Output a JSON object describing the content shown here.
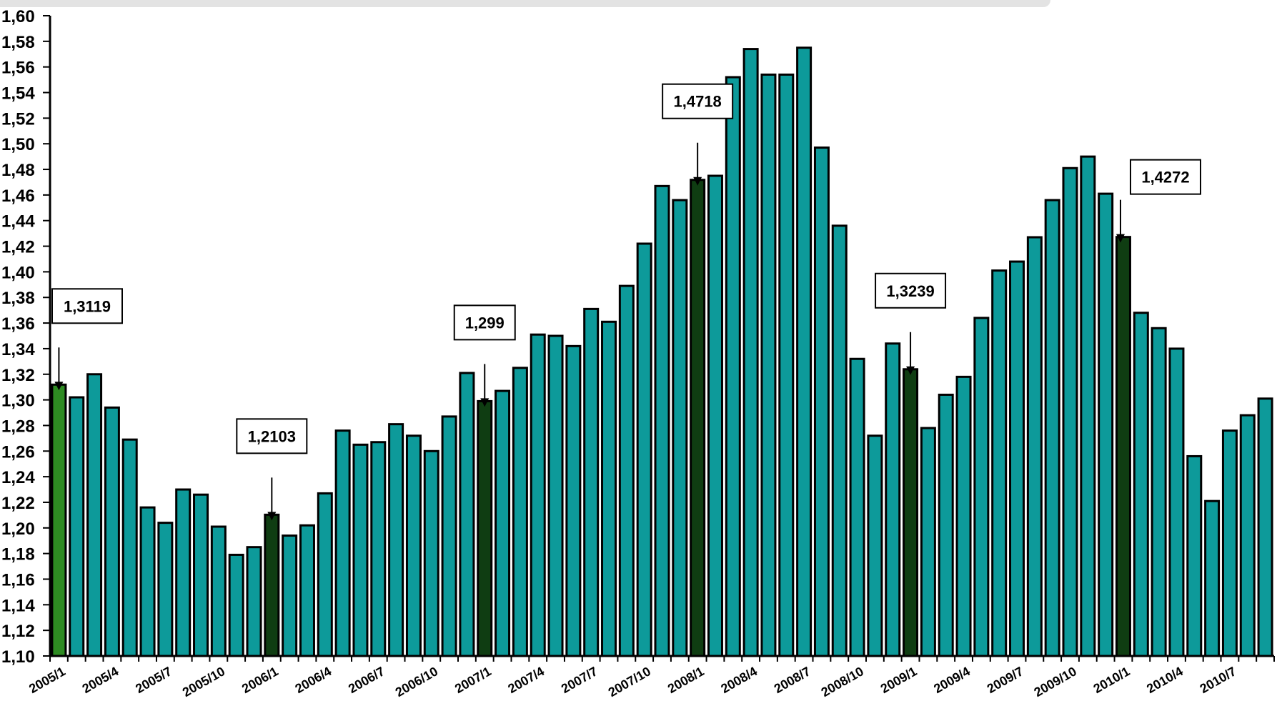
{
  "chart_data": {
    "type": "bar",
    "title": "",
    "xlabel": "",
    "ylabel": "",
    "ylim": [
      1.1,
      1.6
    ],
    "y_step": 0.02,
    "grid": false,
    "legend": "none",
    "colors": {
      "bar": "#0d9a9a",
      "highlight_bar": "#0f3d12",
      "first_bar": "#2e8b22",
      "outline": "#000000"
    },
    "categories": [
      "2005/1",
      "2005/2",
      "2005/3",
      "2005/4",
      "2005/5",
      "2005/6",
      "2005/7",
      "2005/8",
      "2005/9",
      "2005/10",
      "2005/11",
      "2005/12",
      "2006/1",
      "2006/2",
      "2006/3",
      "2006/4",
      "2006/5",
      "2006/6",
      "2006/7",
      "2006/8",
      "2006/9",
      "2006/10",
      "2006/11",
      "2006/12",
      "2007/1",
      "2007/2",
      "2007/3",
      "2007/4",
      "2007/5",
      "2007/6",
      "2007/7",
      "2007/8",
      "2007/9",
      "2007/10",
      "2007/11",
      "2007/12",
      "2008/1",
      "2008/2",
      "2008/3",
      "2008/4",
      "2008/5",
      "2008/6",
      "2008/7",
      "2008/8",
      "2008/9",
      "2008/10",
      "2008/11",
      "2008/12",
      "2009/1",
      "2009/2",
      "2009/3",
      "2009/4",
      "2009/5",
      "2009/6",
      "2009/7",
      "2009/8",
      "2009/9",
      "2009/10",
      "2009/11",
      "2009/12",
      "2010/1",
      "2010/2",
      "2010/3",
      "2010/4",
      "2010/5",
      "2010/6",
      "2010/7",
      "2010/8",
      "2010/9"
    ],
    "values": [
      1.3119,
      1.302,
      1.32,
      1.294,
      1.269,
      1.216,
      1.204,
      1.23,
      1.226,
      1.201,
      1.179,
      1.185,
      1.2103,
      1.194,
      1.202,
      1.227,
      1.276,
      1.265,
      1.267,
      1.281,
      1.272,
      1.26,
      1.287,
      1.321,
      1.299,
      1.307,
      1.325,
      1.351,
      1.35,
      1.342,
      1.371,
      1.361,
      1.389,
      1.422,
      1.467,
      1.456,
      1.4718,
      1.475,
      1.552,
      1.574,
      1.554,
      1.554,
      1.575,
      1.497,
      1.436,
      1.332,
      1.272,
      1.344,
      1.3239,
      1.278,
      1.304,
      1.318,
      1.364,
      1.401,
      1.408,
      1.427,
      1.456,
      1.481,
      1.49,
      1.461,
      1.4272,
      1.368,
      1.356,
      1.34,
      1.256,
      1.221,
      1.276,
      1.288,
      1.301
    ],
    "highlight_indices": [
      12,
      24,
      36,
      48,
      60
    ],
    "first_index_color": 0,
    "y_tick_labels": [
      "1,10",
      "1,12",
      "1,14",
      "1,16",
      "1,18",
      "1,20",
      "1,22",
      "1,24",
      "1,26",
      "1,28",
      "1,30",
      "1,32",
      "1,34",
      "1,36",
      "1,38",
      "1,40",
      "1,42",
      "1,44",
      "1,46",
      "1,48",
      "1,50",
      "1,52",
      "1,54",
      "1,56",
      "1,58",
      "1,60"
    ],
    "x_tick_labels": [
      {
        "index": 0,
        "text": "2005/1"
      },
      {
        "index": 3,
        "text": "2005/4"
      },
      {
        "index": 6,
        "text": "2005/7"
      },
      {
        "index": 9,
        "text": "2005/10"
      },
      {
        "index": 12,
        "text": "2006/1"
      },
      {
        "index": 15,
        "text": "2006/4"
      },
      {
        "index": 18,
        "text": "2006/7"
      },
      {
        "index": 21,
        "text": "2006/10"
      },
      {
        "index": 24,
        "text": "2007/1"
      },
      {
        "index": 27,
        "text": "2007/4"
      },
      {
        "index": 30,
        "text": "2007/7"
      },
      {
        "index": 33,
        "text": "2007/10"
      },
      {
        "index": 36,
        "text": "2008/1"
      },
      {
        "index": 39,
        "text": "2008/4"
      },
      {
        "index": 42,
        "text": "2008/7"
      },
      {
        "index": 45,
        "text": "2008/10"
      },
      {
        "index": 48,
        "text": "2009/1"
      },
      {
        "index": 51,
        "text": "2009/4"
      },
      {
        "index": 54,
        "text": "2009/7"
      },
      {
        "index": 57,
        "text": "2009/10"
      },
      {
        "index": 60,
        "text": "2010/1"
      },
      {
        "index": 63,
        "text": "2010/4"
      },
      {
        "index": 66,
        "text": "2010/7"
      }
    ],
    "annotations": [
      {
        "index": 0,
        "text": "1,3119"
      },
      {
        "index": 12,
        "text": "1,2103"
      },
      {
        "index": 24,
        "text": "1,299"
      },
      {
        "index": 36,
        "text": "1,4718"
      },
      {
        "index": 48,
        "text": "1,3239"
      },
      {
        "index": 60,
        "text": "1,4272"
      }
    ]
  }
}
